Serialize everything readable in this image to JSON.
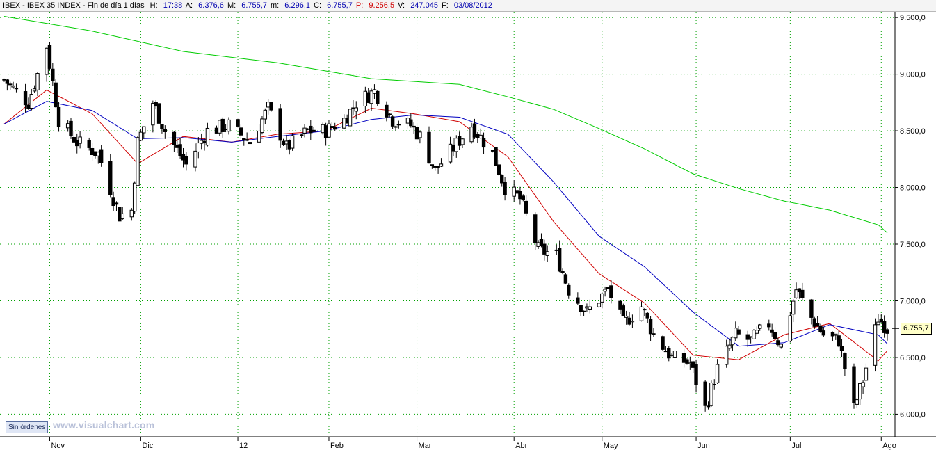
{
  "header": {
    "symbol": "IBEX - IBEX 35 INDEX - Fin de día 1 días",
    "h_label": "H:",
    "h_value": "17:38",
    "a_label": "A:",
    "a_value": "6.376,6",
    "m_label": "M:",
    "m_value": "6.755,7",
    "min_label": "m:",
    "min_value": "6.296,1",
    "c_label": "C:",
    "c_value": "6.755,7",
    "p_label": "P:",
    "p_value": "9.256,5",
    "v_label": "V:",
    "v_value": "247.045",
    "f_label": "F:",
    "f_value": "03/08/2012"
  },
  "status_button": "Sin órdenes",
  "watermark": "www.visualchart.com",
  "last_price": "6.755,7",
  "colors": {
    "ma_short": "#d00000",
    "ma_mid": "#0000c0",
    "ma_long": "#00cc00",
    "grid": "#00a000",
    "candle_down": "#000000",
    "candle_up": "#ffffff"
  },
  "chart_data": {
    "type": "candlestick",
    "x_tick_labels": [
      "Nov",
      "Dic",
      "12",
      "Feb",
      "Mar",
      "Abr",
      "May",
      "Jun",
      "Jul",
      "Ago"
    ],
    "y_tick_labels": [
      "6.000,0",
      "6.500,0",
      "7.000,0",
      "7.500,0",
      "8.000,0",
      "8.500,0",
      "9.000,0",
      "9.500,0"
    ],
    "y_ticks": [
      6000,
      6500,
      7000,
      7500,
      8000,
      8500,
      9000,
      9500
    ],
    "ylim": [
      5800,
      9550
    ],
    "x_range": [
      "2011-10-17",
      "2012-08-03"
    ],
    "month_starts": [
      "2011-11-01",
      "2011-12-01",
      "2012-01-02",
      "2012-02-01",
      "2012-03-01",
      "2012-04-02",
      "2012-05-01",
      "2012-06-01",
      "2012-07-02",
      "2012-08-01"
    ],
    "close_path": [
      [
        "2011-10-17",
        8950
      ],
      [
        "2011-10-25",
        8750
      ],
      [
        "2011-10-31",
        9250
      ],
      [
        "2011-11-04",
        8600
      ],
      [
        "2011-11-10",
        8400
      ],
      [
        "2011-11-17",
        8300
      ],
      [
        "2011-11-24",
        7750
      ],
      [
        "2011-11-28",
        7800
      ],
      [
        "2011-11-30",
        8400
      ],
      [
        "2011-12-05",
        8750
      ],
      [
        "2011-12-09",
        8500
      ],
      [
        "2011-12-16",
        8200
      ],
      [
        "2011-12-23",
        8500
      ],
      [
        "2011-12-30",
        8550
      ],
      [
        "2012-01-06",
        8400
      ],
      [
        "2012-01-12",
        8700
      ],
      [
        "2012-01-18",
        8350
      ],
      [
        "2012-01-25",
        8500
      ],
      [
        "2012-01-31",
        8500
      ],
      [
        "2012-02-06",
        8600
      ],
      [
        "2012-02-10",
        8750
      ],
      [
        "2012-02-16",
        8850
      ],
      [
        "2012-02-22",
        8600
      ],
      [
        "2012-02-28",
        8550
      ],
      [
        "2012-03-02",
        8450
      ],
      [
        "2012-03-07",
        8150
      ],
      [
        "2012-03-13",
        8350
      ],
      [
        "2012-03-19",
        8550
      ],
      [
        "2012-03-26",
        8300
      ],
      [
        "2012-03-30",
        8000
      ],
      [
        "2012-04-04",
        7900
      ],
      [
        "2012-04-10",
        7450
      ],
      [
        "2012-04-16",
        7400
      ],
      [
        "2012-04-20",
        7100
      ],
      [
        "2012-04-26",
        6900
      ],
      [
        "2012-05-03",
        7100
      ],
      [
        "2012-05-08",
        6800
      ],
      [
        "2012-05-14",
        6950
      ],
      [
        "2012-05-18",
        6700
      ],
      [
        "2012-05-24",
        6500
      ],
      [
        "2012-05-30",
        6450
      ],
      [
        "2012-06-04",
        6050
      ],
      [
        "2012-06-08",
        6400
      ],
      [
        "2012-06-14",
        6700
      ],
      [
        "2012-06-19",
        6650
      ],
      [
        "2012-06-25",
        6800
      ],
      [
        "2012-06-29",
        6600
      ],
      [
        "2012-07-04",
        7100
      ],
      [
        "2012-07-09",
        6850
      ],
      [
        "2012-07-13",
        6700
      ],
      [
        "2012-07-18",
        6650
      ],
      [
        "2012-07-23",
        6050
      ],
      [
        "2012-07-26",
        6300
      ],
      [
        "2012-07-31",
        6850
      ],
      [
        "2012-08-03",
        6756
      ]
    ],
    "series": [
      {
        "name": "",
        "color": "#d00000",
        "points": [
          [
            "2011-10-17",
            8560
          ],
          [
            "2011-10-31",
            8860
          ],
          [
            "2011-11-15",
            8650
          ],
          [
            "2011-11-30",
            8210
          ],
          [
            "2011-12-15",
            8450
          ],
          [
            "2011-12-31",
            8400
          ],
          [
            "2012-01-15",
            8470
          ],
          [
            "2012-01-31",
            8500
          ],
          [
            "2012-02-15",
            8700
          ],
          [
            "2012-02-29",
            8650
          ],
          [
            "2012-03-15",
            8580
          ],
          [
            "2012-03-31",
            8270
          ],
          [
            "2012-04-15",
            7700
          ],
          [
            "2012-04-30",
            7240
          ],
          [
            "2012-05-15",
            6980
          ],
          [
            "2012-05-31",
            6520
          ],
          [
            "2012-06-15",
            6480
          ],
          [
            "2012-06-30",
            6700
          ],
          [
            "2012-07-15",
            6800
          ],
          [
            "2012-07-31",
            6470
          ],
          [
            "2012-08-03",
            6560
          ]
        ]
      },
      {
        "name": "",
        "color": "#0000c0",
        "points": [
          [
            "2011-10-17",
            8560
          ],
          [
            "2011-10-31",
            8760
          ],
          [
            "2011-11-15",
            8680
          ],
          [
            "2011-11-30",
            8430
          ],
          [
            "2011-12-15",
            8440
          ],
          [
            "2011-12-31",
            8400
          ],
          [
            "2012-01-15",
            8450
          ],
          [
            "2012-01-31",
            8500
          ],
          [
            "2012-02-15",
            8600
          ],
          [
            "2012-02-29",
            8640
          ],
          [
            "2012-03-15",
            8620
          ],
          [
            "2012-03-31",
            8470
          ],
          [
            "2012-04-15",
            8050
          ],
          [
            "2012-04-30",
            7570
          ],
          [
            "2012-05-15",
            7300
          ],
          [
            "2012-05-31",
            6900
          ],
          [
            "2012-06-15",
            6600
          ],
          [
            "2012-06-30",
            6630
          ],
          [
            "2012-07-15",
            6790
          ],
          [
            "2012-07-31",
            6700
          ],
          [
            "2012-08-03",
            6620
          ]
        ]
      },
      {
        "name": "",
        "color": "#00cc00",
        "points": [
          [
            "2011-10-17",
            9510
          ],
          [
            "2011-11-15",
            9380
          ],
          [
            "2011-12-15",
            9200
          ],
          [
            "2012-01-15",
            9100
          ],
          [
            "2012-02-15",
            8960
          ],
          [
            "2012-03-15",
            8910
          ],
          [
            "2012-03-31",
            8800
          ],
          [
            "2012-04-15",
            8690
          ],
          [
            "2012-04-30",
            8520
          ],
          [
            "2012-05-15",
            8340
          ],
          [
            "2012-05-31",
            8120
          ],
          [
            "2012-06-15",
            7990
          ],
          [
            "2012-06-30",
            7880
          ],
          [
            "2012-07-15",
            7800
          ],
          [
            "2012-07-31",
            7670
          ],
          [
            "2012-08-03",
            7600
          ]
        ]
      }
    ]
  }
}
